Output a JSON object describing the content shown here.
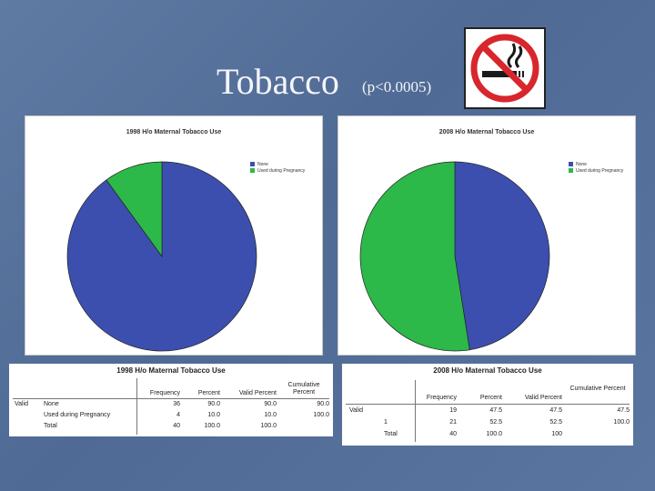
{
  "slide": {
    "title": "Tobacco",
    "subtitle": "(p<0.0005)",
    "sign_icon": "no-smoking-icon"
  },
  "colors": {
    "none": "#3c4fae",
    "used": "#2db84a",
    "sign_red": "#d8262c"
  },
  "chart_data": [
    {
      "type": "pie",
      "title": "1998 H/o Maternal Tobacco Use",
      "legend": [
        "None",
        "Used during Pregnancy"
      ],
      "values": [
        90.0,
        10.0
      ]
    },
    {
      "type": "pie",
      "title": "2008 H/o Maternal Tobacco Use",
      "legend": [
        "None",
        "Used during Pregnancy"
      ],
      "values": [
        47.5,
        52.5
      ]
    }
  ],
  "tables": [
    {
      "title": "1998 H/o Maternal Tobacco Use",
      "headers": [
        "",
        "",
        "Frequency",
        "Percent",
        "Valid Percent",
        "Cumulative Percent"
      ],
      "rows": [
        [
          "Valid",
          "None",
          "36",
          "90.0",
          "90.0",
          "90.0"
        ],
        [
          "",
          "Used during Pregnancy",
          "4",
          "10.0",
          "10.0",
          "100.0"
        ],
        [
          "",
          "Total",
          "40",
          "100.0",
          "100.0",
          ""
        ]
      ]
    },
    {
      "title": "2008 H/o Maternal Tobacco Use",
      "headers": [
        "",
        "",
        "Frequency",
        "Percent",
        "Valid Percent",
        "Cumulative Percent"
      ],
      "rows": [
        [
          "Valid",
          "",
          "19",
          "47.5",
          "47.5",
          "47.5"
        ],
        [
          "",
          "1",
          "21",
          "52.5",
          "52.5",
          "100.0"
        ],
        [
          "",
          "Total",
          "40",
          "100.0",
          "100",
          ""
        ]
      ]
    }
  ]
}
